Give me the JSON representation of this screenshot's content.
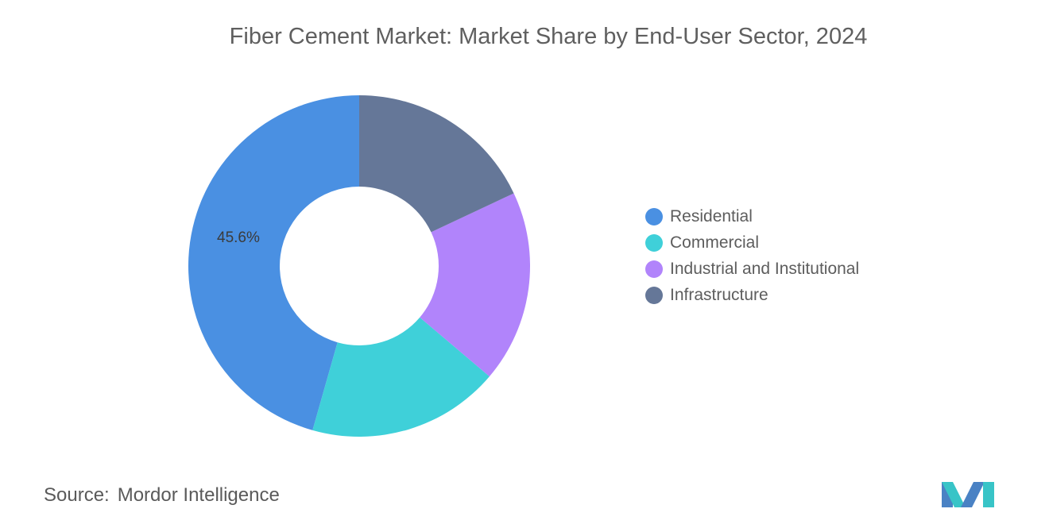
{
  "chart_data": {
    "type": "pie",
    "title": "Fiber Cement Market: Market Share by End-User Sector, 2024",
    "categories": [
      "Residential",
      "Commercial",
      "Industrial and Institutional",
      "Infrastructure"
    ],
    "values": [
      45.6,
      18.2,
      18.2,
      18.0
    ],
    "colors": [
      "#4a90e2",
      "#3fd0d9",
      "#b184fb",
      "#657798"
    ],
    "data_labels": [
      "45.6%",
      "",
      "",
      ""
    ],
    "legend_position": "right",
    "donut": true
  },
  "footer": {
    "source_label": "Source:",
    "source_value": "Mordor Intelligence",
    "logo_icon": "mordor-intelligence-logo-icon",
    "logo_colors": [
      "#4a82c4",
      "#38c4c7"
    ]
  }
}
